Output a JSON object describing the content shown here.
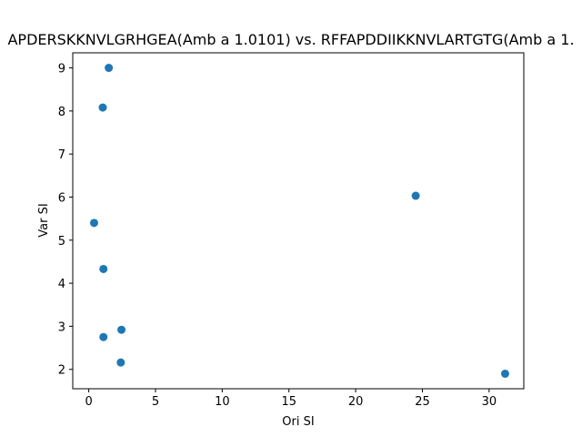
{
  "chart_data": {
    "type": "scatter",
    "title": "APDERSKKNVLGRHGEA(Amb a 1.0101) vs. RFFAPDDIIKKNVLARTGTG(Amb a 1.",
    "xlabel": "Ori SI",
    "ylabel": "Var SI",
    "xlim": [
      -1.2,
      32.6
    ],
    "ylim": [
      1.55,
      9.35
    ],
    "xticks": [
      0,
      5,
      10,
      15,
      20,
      25,
      30
    ],
    "yticks": [
      2,
      3,
      4,
      5,
      6,
      7,
      8,
      9
    ],
    "grid": false,
    "legend": "none",
    "color": "#1f77b4",
    "points": [
      {
        "x": 1.5,
        "y": 9.0
      },
      {
        "x": 1.05,
        "y": 8.08
      },
      {
        "x": 24.5,
        "y": 6.03
      },
      {
        "x": 0.4,
        "y": 5.4
      },
      {
        "x": 1.1,
        "y": 4.33
      },
      {
        "x": 2.45,
        "y": 2.92
      },
      {
        "x": 1.1,
        "y": 2.75
      },
      {
        "x": 2.4,
        "y": 2.16
      },
      {
        "x": 31.2,
        "y": 1.9
      }
    ]
  }
}
